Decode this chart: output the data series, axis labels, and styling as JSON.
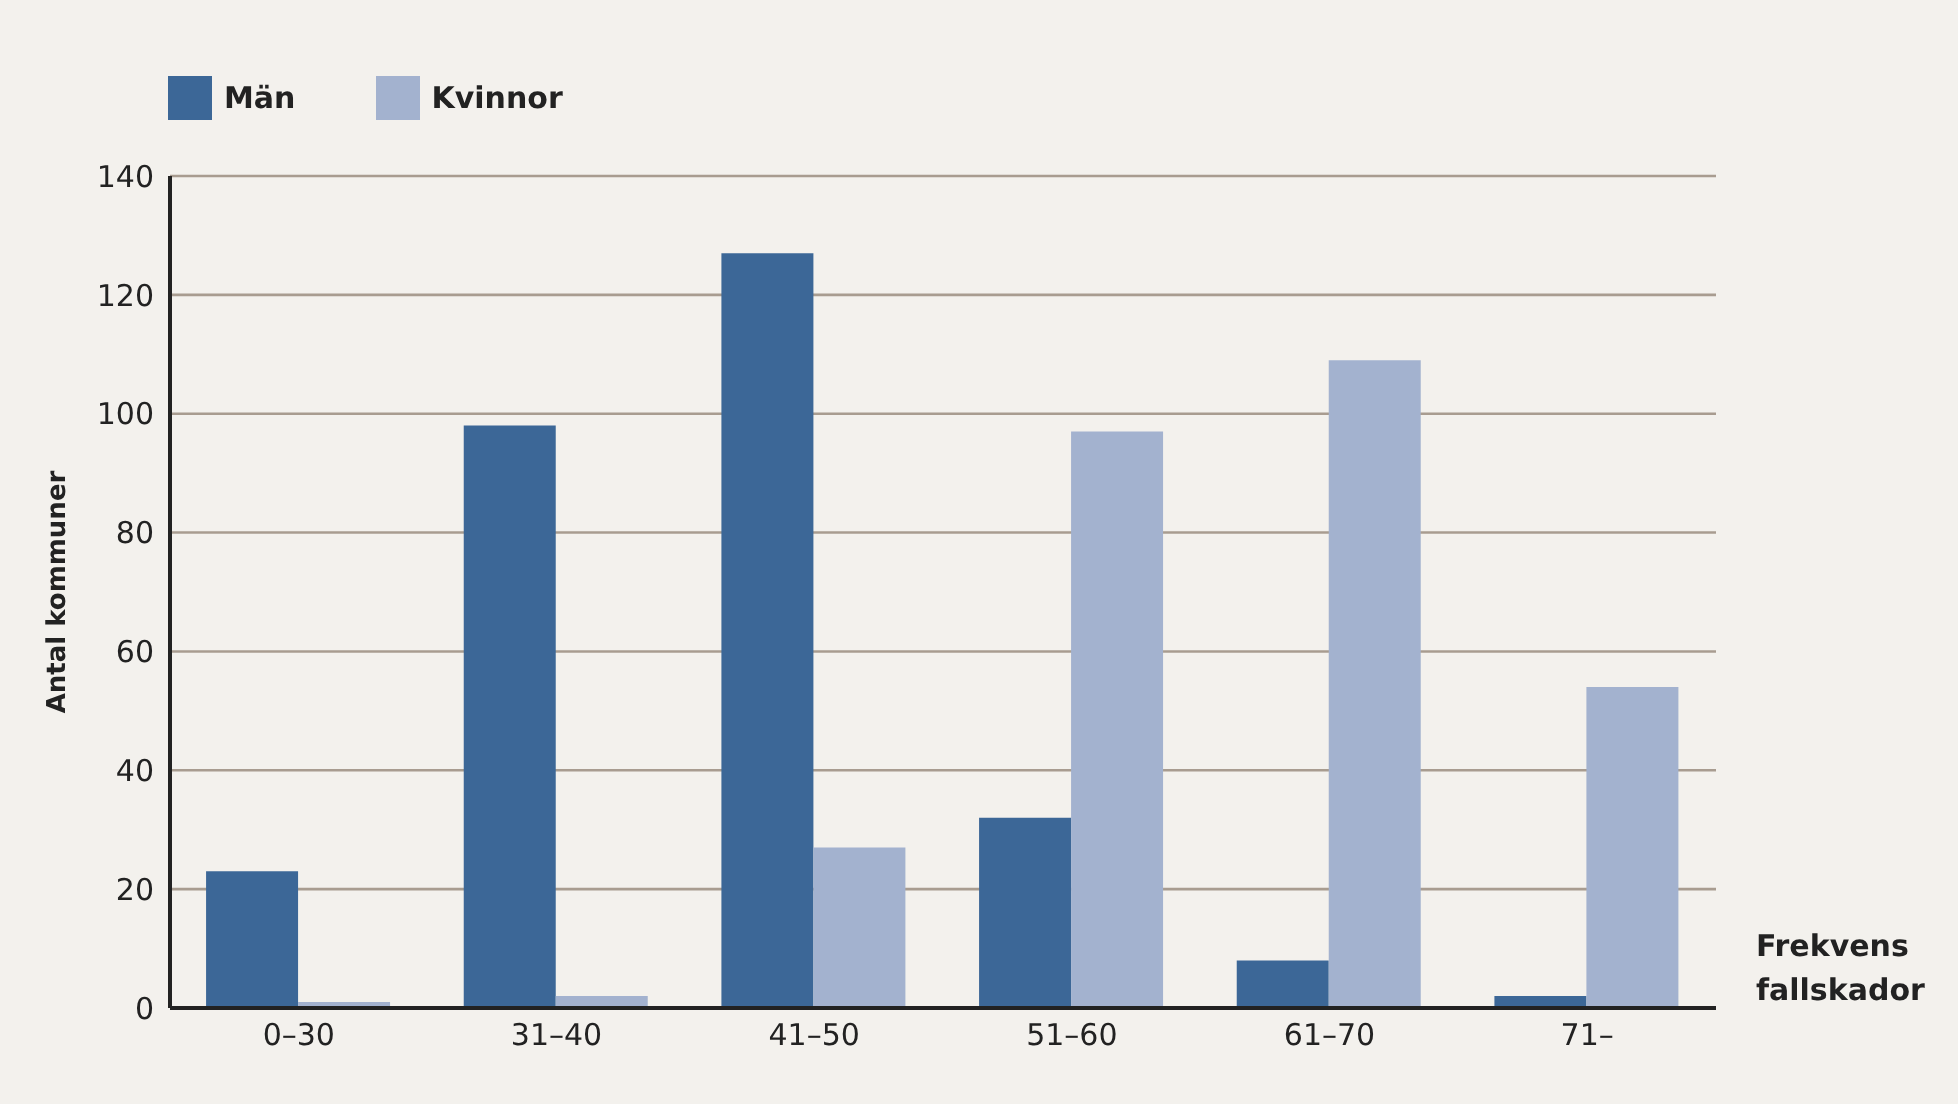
{
  "chart_data": {
    "type": "bar",
    "categories": [
      "0–30",
      "31–40",
      "41–50",
      "51–60",
      "61–70",
      "71–"
    ],
    "series": [
      {
        "name": "Män",
        "color": "#3c6797",
        "values": [
          23,
          98,
          127,
          32,
          8,
          2
        ]
      },
      {
        "name": "Kvinnor",
        "color": "#a3b2cf",
        "values": [
          1,
          2,
          27,
          97,
          109,
          54
        ]
      }
    ],
    "xlabel": "Frekvens fallskador",
    "ylabel": "Antal kommuner",
    "ylim": [
      0,
      140
    ],
    "yticks": [
      0,
      20,
      40,
      60,
      80,
      100,
      120,
      140
    ],
    "grid": "y",
    "legend": "top left"
  }
}
